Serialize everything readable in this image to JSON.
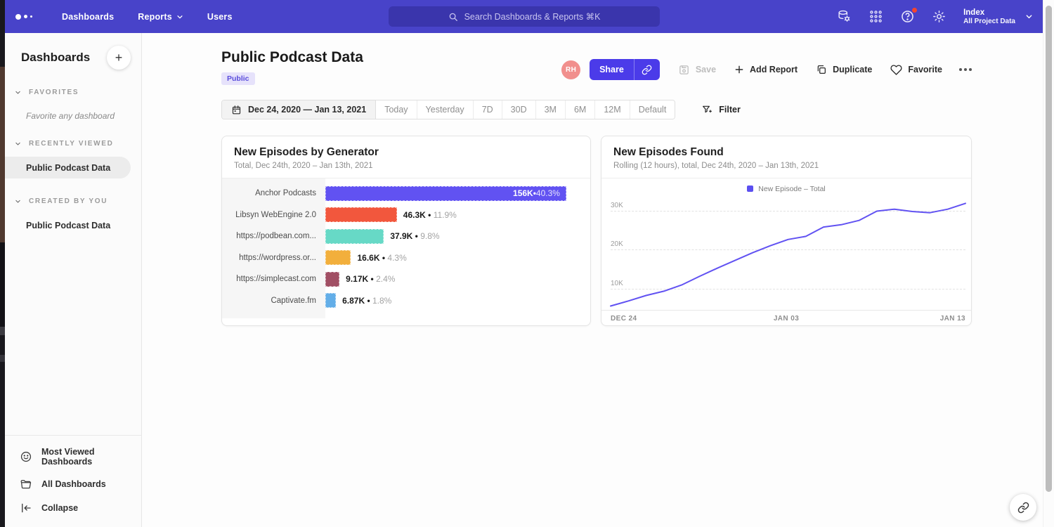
{
  "nav": {
    "items": [
      {
        "label": "Dashboards",
        "has_dropdown": false
      },
      {
        "label": "Reports",
        "has_dropdown": true
      },
      {
        "label": "Users",
        "has_dropdown": false
      }
    ],
    "search_placeholder": "Search Dashboards & Reports ⌘K",
    "project_name": "Index",
    "project_scope": "All Project Data"
  },
  "sidebar": {
    "title": "Dashboards",
    "add_button": "+",
    "sections": [
      {
        "label": "FAVORITES",
        "empty_text": "Favorite any dashboard",
        "items": []
      },
      {
        "label": "RECENTLY VIEWED",
        "items": [
          {
            "label": "Public Podcast Data",
            "selected": true
          }
        ]
      },
      {
        "label": "CREATED BY YOU",
        "items": [
          {
            "label": "Public Podcast Data",
            "selected": false
          }
        ]
      }
    ],
    "footer": [
      {
        "label": "Most Viewed Dashboards",
        "icon": "smiley-icon"
      },
      {
        "label": "All Dashboards",
        "icon": "folder-icon"
      },
      {
        "label": "Collapse",
        "icon": "collapse-icon"
      }
    ]
  },
  "page": {
    "title": "Public Podcast Data",
    "badge": "Public",
    "avatar_initials": "RH",
    "actions": {
      "share": "Share",
      "save": "Save",
      "add_report": "Add Report",
      "duplicate": "Duplicate",
      "favorite": "Favorite"
    }
  },
  "toolbar": {
    "date_range": "Dec 24, 2020 — Jan 13, 2021",
    "presets": [
      "Today",
      "Yesterday",
      "7D",
      "30D",
      "3M",
      "6M",
      "12M",
      "Default"
    ],
    "filter": "Filter"
  },
  "chart_data": [
    {
      "type": "bar",
      "orientation": "horizontal",
      "title": "New Episodes by Generator",
      "subtitle": "Total, Dec 24th, 2020 – Jan 13th, 2021",
      "categories": [
        "Anchor Podcasts",
        "Libsyn WebEngine 2.0",
        "https://podbean.com...",
        "https://wordpress.or...",
        "https://simplecast.com",
        "Captivate.fm"
      ],
      "values": [
        156000,
        46300,
        37900,
        16600,
        9170,
        6870
      ],
      "value_labels": [
        "156K",
        "46.3K",
        "37.9K",
        "16.6K",
        "9.17K",
        "6.87K"
      ],
      "percent_labels": [
        "40.3%",
        "11.9%",
        "9.8%",
        "4.3%",
        "2.4%",
        "1.8%"
      ],
      "colors": [
        "#6152f2",
        "#f2573d",
        "#67d9c6",
        "#f2af3c",
        "#a14f64",
        "#63aee8"
      ]
    },
    {
      "type": "line",
      "title": "New Episodes Found",
      "subtitle": "Rolling (12 hours), total, Dec 24th, 2020 – Jan 13th, 2021",
      "legend": [
        {
          "label": "New Episode – Total",
          "color": "#5b4ff0"
        }
      ],
      "line_color": "#6152f2",
      "x_ticks": [
        "DEC 24",
        "JAN 03",
        "JAN 13"
      ],
      "y_ticks": [
        {
          "label": "10K",
          "value": 10000
        },
        {
          "label": "20K",
          "value": 20000
        },
        {
          "label": "30K",
          "value": 30000
        }
      ],
      "y_axis_min": 4500,
      "y_axis_max": 34500,
      "grid": "dashed-horizontal",
      "legend_position": "top-center",
      "values": [
        5500,
        6800,
        8200,
        9300,
        10900,
        13100,
        15200,
        17200,
        19200,
        21000,
        22600,
        23400,
        25800,
        26400,
        27500,
        29900,
        30400,
        29800,
        29500,
        30400,
        31900
      ]
    }
  ]
}
